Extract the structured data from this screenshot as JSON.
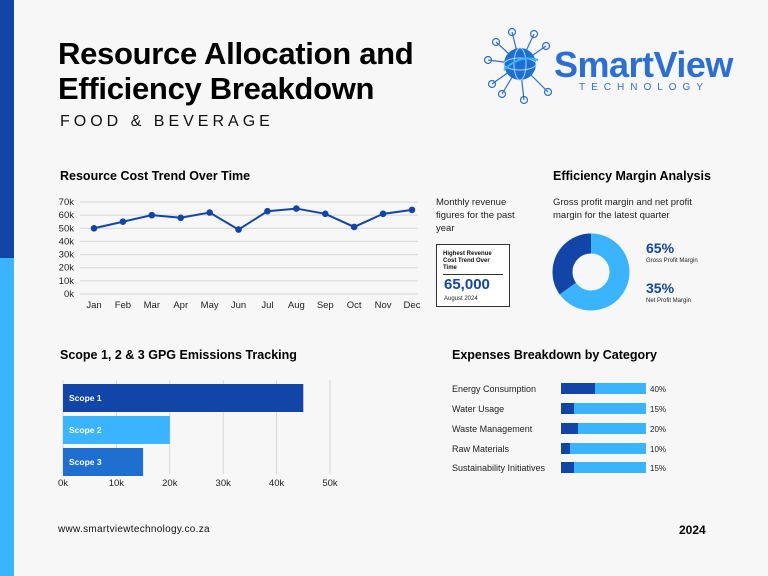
{
  "page": {
    "title": "Resource Allocation and Efficiency Breakdown",
    "subtitle": "FOOD & BEVERAGE",
    "footer_url": "www.smartviewtechnology.co.za",
    "footer_year": "2024"
  },
  "logo": {
    "name": "SmartView",
    "tagline": "TECHNOLOGY"
  },
  "colors": {
    "dark_blue": "#1145a8",
    "light_blue": "#3bb4ff",
    "mid_blue": "#1e6fd0",
    "logo_blue": "#2b6fd6"
  },
  "line_section": {
    "title": "Resource Cost Trend Over Time",
    "note": "Monthly revenue figures for the past year",
    "card": {
      "label": "Highest Revenue Cost Trend Over Time",
      "value": "65,000",
      "date": "August 2024"
    }
  },
  "donut_section": {
    "title": "Efficiency Margin Analysis",
    "note": "Gross profit margin and net profit margin for the latest quarter",
    "items": [
      {
        "pct": "65%",
        "caption": "Gross Profit Margin"
      },
      {
        "pct": "35%",
        "caption": "Net Profit Margin"
      }
    ]
  },
  "scope_section": {
    "title": "Scope 1, 2 & 3 GPG Emissions Tracking"
  },
  "expenses_section": {
    "title": "Expenses Breakdown by Category",
    "rows": [
      {
        "label": "Energy Consumption",
        "pct": "40%",
        "value": 40
      },
      {
        "label": "Water Usage",
        "pct": "15%",
        "value": 15
      },
      {
        "label": "Waste Management",
        "pct": "20%",
        "value": 20
      },
      {
        "label": "Raw Materials",
        "pct": "10%",
        "value": 10
      },
      {
        "label": "Sustainability Initiatives",
        "pct": "15%",
        "value": 15
      }
    ]
  },
  "chart_data": [
    {
      "type": "line",
      "title": "Resource Cost Trend Over Time",
      "categories": [
        "Jan",
        "Feb",
        "Mar",
        "Apr",
        "May",
        "Jun",
        "Jul",
        "Aug",
        "Sep",
        "Oct",
        "Nov",
        "Dec"
      ],
      "values": [
        50000,
        55000,
        60000,
        58000,
        62000,
        49000,
        63000,
        65000,
        61000,
        51000,
        61000,
        64000
      ],
      "ylim": [
        0,
        70000
      ],
      "yticks": [
        "0k",
        "10k",
        "20k",
        "30k",
        "40k",
        "50k",
        "60k",
        "70k"
      ],
      "grid": true
    },
    {
      "type": "pie",
      "title": "Efficiency Margin Analysis",
      "categories": [
        "Gross Profit Margin",
        "Net Profit Margin"
      ],
      "values": [
        65,
        35
      ]
    },
    {
      "type": "bar",
      "orientation": "horizontal",
      "title": "Scope 1, 2 & 3 GPG Emissions Tracking",
      "categories": [
        "Scope 1",
        "Scope 2",
        "Scope 3"
      ],
      "values": [
        45000,
        20000,
        15000
      ],
      "xlim": [
        0,
        50000
      ],
      "xticks": [
        "0k",
        "10k",
        "20k",
        "30k",
        "40k",
        "50k"
      ],
      "grid": true
    },
    {
      "type": "bar",
      "orientation": "horizontal",
      "title": "Expenses Breakdown by Category",
      "categories": [
        "Energy Consumption",
        "Water Usage",
        "Waste Management",
        "Raw Materials",
        "Sustainability Initiatives"
      ],
      "values": [
        40,
        15,
        20,
        10,
        15
      ],
      "value_labels": [
        "40%",
        "15%",
        "20%",
        "10%",
        "15%"
      ]
    }
  ]
}
